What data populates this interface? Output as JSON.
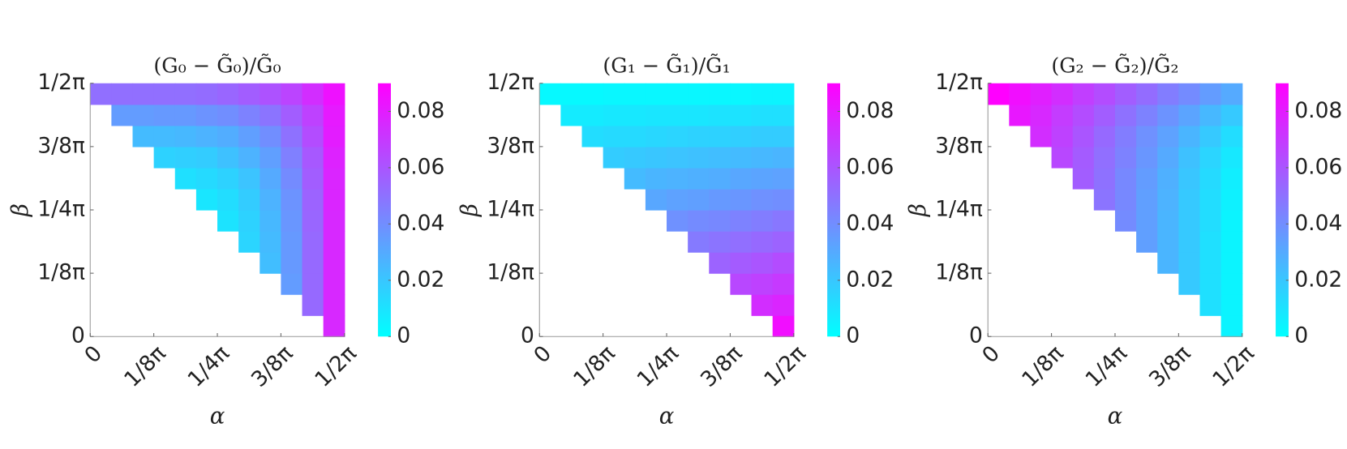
{
  "chart_data": [
    {
      "type": "heatmap",
      "title": "(G₀ − G̃₀)/G̃₀",
      "xlabel": "α",
      "ylabel": "β",
      "xlim": [
        0,
        0.5
      ],
      "ylim": [
        0,
        0.5
      ],
      "xticks": [
        0,
        {
          "value": 0.125,
          "label": "1/8π"
        },
        {
          "value": 0.25,
          "label": "1/4π"
        },
        {
          "value": 0.375,
          "label": "3/8π"
        },
        {
          "value": 0.5,
          "label": "1/2π"
        }
      ],
      "yticks": [
        0,
        {
          "value": 0.125,
          "label": "1/8π"
        },
        {
          "value": 0.25,
          "label": "1/4π"
        },
        {
          "value": 0.375,
          "label": "3/8π"
        },
        {
          "value": 0.5,
          "label": "1/2π"
        }
      ],
      "colormap": [
        "#00ffff",
        "#ff00ff"
      ],
      "clim": [
        0,
        0.09
      ],
      "cticks": [
        0,
        0.02,
        0.04,
        0.06,
        0.08
      ],
      "z": [
        [
          null,
          null,
          null,
          null,
          null,
          null,
          null,
          null,
          null,
          null,
          null,
          0.076
        ],
        [
          null,
          null,
          null,
          null,
          null,
          null,
          null,
          null,
          null,
          null,
          0.053,
          0.076
        ],
        [
          null,
          null,
          null,
          null,
          null,
          null,
          null,
          null,
          null,
          0.035,
          0.053,
          0.076
        ],
        [
          null,
          null,
          null,
          null,
          null,
          null,
          null,
          null,
          0.023,
          0.036,
          0.053,
          0.076
        ],
        [
          null,
          null,
          null,
          null,
          null,
          null,
          null,
          0.015,
          0.024,
          0.036,
          0.053,
          0.076
        ],
        [
          null,
          null,
          null,
          null,
          null,
          null,
          0.01,
          0.016,
          0.025,
          0.037,
          0.054,
          0.076
        ],
        [
          null,
          null,
          null,
          null,
          null,
          0.009,
          0.012,
          0.018,
          0.027,
          0.038,
          0.055,
          0.077
        ],
        [
          null,
          null,
          null,
          null,
          0.011,
          0.013,
          0.016,
          0.021,
          0.03,
          0.041,
          0.057,
          0.077
        ],
        [
          null,
          null,
          null,
          0.016,
          0.017,
          0.018,
          0.022,
          0.027,
          0.034,
          0.045,
          0.059,
          0.078
        ],
        [
          null,
          null,
          0.024,
          0.024,
          0.025,
          0.027,
          0.029,
          0.034,
          0.04,
          0.05,
          0.063,
          0.08
        ],
        [
          null,
          0.035,
          0.035,
          0.036,
          0.036,
          0.038,
          0.04,
          0.044,
          0.049,
          0.057,
          0.067,
          0.081
        ],
        [
          0.051,
          0.051,
          0.051,
          0.051,
          0.051,
          0.052,
          0.054,
          0.057,
          0.061,
          0.066,
          0.074,
          0.084
        ]
      ]
    },
    {
      "type": "heatmap",
      "title": "(G₁ − G̃₁)/G̃₁",
      "xlabel": "α",
      "ylabel": "β",
      "xlim": [
        0,
        0.5
      ],
      "ylim": [
        0,
        0.5
      ],
      "xticks": [
        0,
        {
          "value": 0.125,
          "label": "1/8π"
        },
        {
          "value": 0.25,
          "label": "1/4π"
        },
        {
          "value": 0.375,
          "label": "3/8π"
        },
        {
          "value": 0.5,
          "label": "1/2π"
        }
      ],
      "yticks": [
        0,
        {
          "value": 0.125,
          "label": "1/8π"
        },
        {
          "value": 0.25,
          "label": "1/4π"
        },
        {
          "value": 0.375,
          "label": "3/8π"
        },
        {
          "value": 0.5,
          "label": "1/2π"
        }
      ],
      "colormap": [
        "#00ffff",
        "#ff00ff"
      ],
      "clim": [
        0,
        0.09
      ],
      "cticks": [
        0,
        0.02,
        0.04,
        0.06,
        0.08
      ],
      "z": [
        [
          null,
          null,
          null,
          null,
          null,
          null,
          null,
          null,
          null,
          null,
          null,
          0.085
        ],
        [
          null,
          null,
          null,
          null,
          null,
          null,
          null,
          null,
          null,
          null,
          0.074,
          0.077
        ],
        [
          null,
          null,
          null,
          null,
          null,
          null,
          null,
          null,
          null,
          0.065,
          0.067,
          0.07
        ],
        [
          null,
          null,
          null,
          null,
          null,
          null,
          null,
          null,
          0.055,
          0.058,
          0.06,
          0.063
        ],
        [
          null,
          null,
          null,
          null,
          null,
          null,
          null,
          0.047,
          0.049,
          0.051,
          0.053,
          0.055
        ],
        [
          null,
          null,
          null,
          null,
          null,
          null,
          0.039,
          0.041,
          0.042,
          0.044,
          0.046,
          0.048
        ],
        [
          null,
          null,
          null,
          null,
          null,
          0.031,
          0.033,
          0.034,
          0.036,
          0.037,
          0.039,
          0.04
        ],
        [
          null,
          null,
          null,
          null,
          0.024,
          0.026,
          0.027,
          0.028,
          0.029,
          0.031,
          0.032,
          0.033
        ],
        [
          null,
          null,
          null,
          0.018,
          0.019,
          0.02,
          0.021,
          0.022,
          0.023,
          0.024,
          0.025,
          0.026
        ],
        [
          null,
          null,
          0.012,
          0.013,
          0.013,
          0.014,
          0.015,
          0.016,
          0.016,
          0.017,
          0.018,
          0.018
        ],
        [
          null,
          0.007,
          0.007,
          0.008,
          0.008,
          0.009,
          0.009,
          0.009,
          0.01,
          0.01,
          0.011,
          0.011
        ],
        [
          0.002,
          0.002,
          0.002,
          0.003,
          0.003,
          0.003,
          0.003,
          0.003,
          0.003,
          0.003,
          0.004,
          0.004
        ]
      ]
    },
    {
      "type": "heatmap",
      "title": "(G₂ − G̃₂)/G̃₂",
      "xlabel": "α",
      "ylabel": "β",
      "xlim": [
        0,
        0.5
      ],
      "ylim": [
        0,
        0.5
      ],
      "xticks": [
        0,
        {
          "value": 0.125,
          "label": "1/8π"
        },
        {
          "value": 0.25,
          "label": "1/4π"
        },
        {
          "value": 0.375,
          "label": "3/8π"
        },
        {
          "value": 0.5,
          "label": "1/2π"
        }
      ],
      "yticks": [
        0,
        {
          "value": 0.125,
          "label": "1/8π"
        },
        {
          "value": 0.25,
          "label": "1/4π"
        },
        {
          "value": 0.375,
          "label": "3/8π"
        },
        {
          "value": 0.5,
          "label": "1/2π"
        }
      ],
      "colormap": [
        "#00ffff",
        "#ff00ff"
      ],
      "clim": [
        0,
        0.09
      ],
      "cticks": [
        0,
        0.02,
        0.04,
        0.06,
        0.08
      ],
      "z": [
        [
          null,
          null,
          null,
          null,
          null,
          null,
          null,
          null,
          null,
          null,
          null,
          0.004
        ],
        [
          null,
          null,
          null,
          null,
          null,
          null,
          null,
          null,
          null,
          null,
          0.011,
          0.004
        ],
        [
          null,
          null,
          null,
          null,
          null,
          null,
          null,
          null,
          null,
          0.019,
          0.011,
          0.004
        ],
        [
          null,
          null,
          null,
          null,
          null,
          null,
          null,
          null,
          0.026,
          0.019,
          0.011,
          0.004
        ],
        [
          null,
          null,
          null,
          null,
          null,
          null,
          null,
          0.034,
          0.026,
          0.019,
          0.011,
          0.004
        ],
        [
          null,
          null,
          null,
          null,
          null,
          null,
          0.041,
          0.034,
          0.026,
          0.019,
          0.012,
          0.004
        ],
        [
          null,
          null,
          null,
          null,
          null,
          0.049,
          0.042,
          0.034,
          0.027,
          0.019,
          0.012,
          0.005
        ],
        [
          null,
          null,
          null,
          null,
          0.057,
          0.05,
          0.042,
          0.035,
          0.028,
          0.02,
          0.013,
          0.006
        ],
        [
          null,
          null,
          null,
          0.065,
          0.058,
          0.051,
          0.044,
          0.037,
          0.03,
          0.022,
          0.015,
          0.008
        ],
        [
          null,
          null,
          0.074,
          0.067,
          0.06,
          0.053,
          0.046,
          0.039,
          0.033,
          0.026,
          0.019,
          0.012
        ],
        [
          null,
          0.082,
          0.076,
          0.069,
          0.063,
          0.057,
          0.05,
          0.044,
          0.038,
          0.032,
          0.025,
          0.019
        ],
        [
          0.09,
          0.085,
          0.079,
          0.074,
          0.068,
          0.063,
          0.057,
          0.052,
          0.046,
          0.041,
          0.035,
          0.03
        ]
      ]
    }
  ]
}
